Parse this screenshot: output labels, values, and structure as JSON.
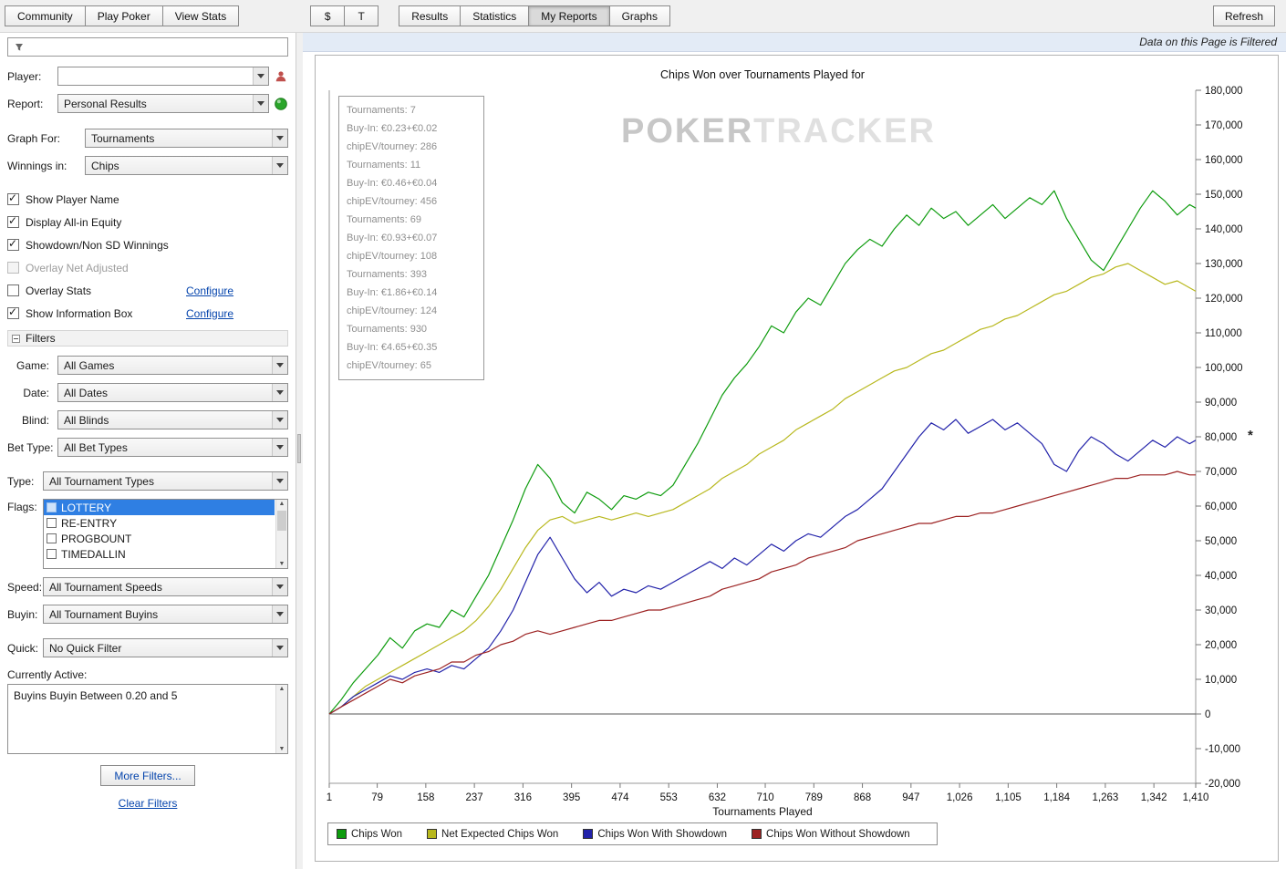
{
  "toolbar": {
    "nav_buttons": [
      {
        "label": "Community"
      },
      {
        "label": "Play Poker"
      },
      {
        "label": "View Stats"
      }
    ],
    "currency_buttons": [
      {
        "label": "$",
        "name": "dollar-button"
      },
      {
        "label": "T",
        "name": "tournament-currency-button"
      }
    ],
    "view_tabs": [
      {
        "label": "Results",
        "active": false
      },
      {
        "label": "Statistics",
        "active": false
      },
      {
        "label": "My Reports",
        "active": true
      },
      {
        "label": "Graphs",
        "active": false
      }
    ],
    "refresh_label": "Refresh"
  },
  "sidebar": {
    "search_value": "",
    "player_label": "Player:",
    "player_value": "",
    "report_label": "Report:",
    "report_value": "Personal Results",
    "graph_for_label": "Graph For:",
    "graph_for_value": "Tournaments",
    "winnings_label": "Winnings in:",
    "winnings_value": "Chips",
    "options": [
      {
        "label": "Show Player Name",
        "checked": true,
        "enabled": true,
        "link": null
      },
      {
        "label": "Display All-in Equity",
        "checked": true,
        "enabled": true,
        "link": null
      },
      {
        "label": "Showdown/Non SD Winnings",
        "checked": true,
        "enabled": true,
        "link": null
      },
      {
        "label": "Overlay Net Adjusted",
        "checked": false,
        "enabled": false,
        "link": null
      },
      {
        "label": "Overlay Stats",
        "checked": false,
        "enabled": true,
        "link": "Configure"
      },
      {
        "label": "Show Information Box",
        "checked": true,
        "enabled": true,
        "link": "Configure"
      }
    ],
    "filters_header": "Filters",
    "basic_filters": [
      {
        "label": "Game:",
        "value": "All Games"
      },
      {
        "label": "Date:",
        "value": "All Dates"
      },
      {
        "label": "Blind:",
        "value": "All Blinds"
      },
      {
        "label": "Bet Type:",
        "value": "All Bet Types"
      }
    ],
    "type_label": "Type:",
    "type_value": "All Tournament Types",
    "flags_label": "Flags:",
    "flags": [
      {
        "label": "LOTTERY",
        "checked": false,
        "selected": true
      },
      {
        "label": "RE-ENTRY",
        "checked": false,
        "selected": false
      },
      {
        "label": "PROGBOUNT",
        "checked": false,
        "selected": false
      },
      {
        "label": "TIMEDALLIN",
        "checked": false,
        "selected": false
      }
    ],
    "speed_label": "Speed:",
    "speed_value": "All Tournament Speeds",
    "buyin_label": "Buyin:",
    "buyin_value": "All Tournament Buyins",
    "quick_label": "Quick:",
    "quick_value": "No Quick Filter",
    "currently_active_label": "Currently Active:",
    "active_filter_text": "Buyins Buyin Between 0.20 and 5",
    "more_filters_label": "More Filters...",
    "clear_filters_label": "Clear Filters"
  },
  "main": {
    "filtered_notice": "Data on this Page is Filtered",
    "watermark_left": "POKER",
    "watermark_right": "TRACKER",
    "final_marker": "*",
    "info_box_lines": [
      "Tournaments: 7",
      "Buy-In: €0.23+€0.02",
      "chipEV/tourney: 286",
      "Tournaments: 11",
      "Buy-In: €0.46+€0.04",
      "chipEV/tourney: 456",
      "Tournaments: 69",
      "Buy-In: €0.93+€0.07",
      "chipEV/tourney: 108",
      "Tournaments: 393",
      "Buy-In: €1.86+€0.14",
      "chipEV/tourney: 124",
      "Tournaments: 930",
      "Buy-In: €4.65+€0.35",
      "chipEV/tourney: 65"
    ]
  },
  "icons": {
    "search_box": "filter-icon",
    "player": "person-icon",
    "report": "go-icon",
    "combo_arrow": "chevron-down-icon",
    "filters_header": "collapse-icon",
    "scrollbar": "scroll-arrows",
    "final_value": "asterisk-marker"
  },
  "chart_data": {
    "type": "line",
    "title": "Chips Won over Tournaments Played for",
    "xlabel": "Tournaments Played",
    "ylabel": "",
    "xlim": [
      1,
      1410
    ],
    "ylim": [
      -20000,
      180000
    ],
    "y_tick_step": 10000,
    "x_ticks": [
      1,
      79,
      158,
      237,
      316,
      395,
      474,
      553,
      632,
      710,
      789,
      868,
      947,
      1026,
      1105,
      1184,
      1263,
      1342,
      1410
    ],
    "grid": false,
    "legend_position": "bottom",
    "x": [
      1,
      20,
      40,
      60,
      80,
      100,
      120,
      140,
      160,
      180,
      200,
      220,
      240,
      260,
      280,
      300,
      320,
      340,
      360,
      380,
      400,
      420,
      440,
      460,
      480,
      500,
      520,
      540,
      560,
      580,
      600,
      620,
      640,
      660,
      680,
      700,
      720,
      740,
      760,
      780,
      800,
      820,
      840,
      860,
      880,
      900,
      920,
      940,
      960,
      980,
      1000,
      1020,
      1040,
      1060,
      1080,
      1100,
      1120,
      1140,
      1160,
      1180,
      1200,
      1220,
      1240,
      1260,
      1280,
      1300,
      1320,
      1340,
      1360,
      1380,
      1400,
      1410
    ],
    "series": [
      {
        "name": "Chips Won",
        "color": "#0e9c0e",
        "values": [
          0,
          4000,
          9000,
          13000,
          17000,
          22000,
          19000,
          24000,
          26000,
          25000,
          30000,
          28000,
          34000,
          40000,
          48000,
          56000,
          65000,
          72000,
          68000,
          61000,
          58000,
          64000,
          62000,
          59000,
          63000,
          62000,
          64000,
          63000,
          66000,
          72000,
          78000,
          85000,
          92000,
          97000,
          101000,
          106000,
          112000,
          110000,
          116000,
          120000,
          118000,
          124000,
          130000,
          134000,
          137000,
          135000,
          140000,
          144000,
          141000,
          146000,
          143000,
          145000,
          141000,
          144000,
          147000,
          143000,
          146000,
          149000,
          147000,
          151000,
          143000,
          137000,
          131000,
          128000,
          134000,
          140000,
          146000,
          151000,
          148000,
          144000,
          147000,
          146000
        ]
      },
      {
        "name": "Net Expected Chips Won",
        "color": "#b8b81e",
        "values": [
          0,
          2000,
          5000,
          8000,
          10000,
          12000,
          14000,
          16000,
          18000,
          20000,
          22000,
          24000,
          27000,
          31000,
          36000,
          42000,
          48000,
          53000,
          56000,
          57000,
          55000,
          56000,
          57000,
          56000,
          57000,
          58000,
          57000,
          58000,
          59000,
          61000,
          63000,
          65000,
          68000,
          70000,
          72000,
          75000,
          77000,
          79000,
          82000,
          84000,
          86000,
          88000,
          91000,
          93000,
          95000,
          97000,
          99000,
          100000,
          102000,
          104000,
          105000,
          107000,
          109000,
          111000,
          112000,
          114000,
          115000,
          117000,
          119000,
          121000,
          122000,
          124000,
          126000,
          127000,
          129000,
          130000,
          128000,
          126000,
          124000,
          125000,
          123000,
          122000
        ]
      },
      {
        "name": "Chips Won With Showdown",
        "color": "#2222aa",
        "values": [
          0,
          2000,
          5000,
          7000,
          9000,
          11000,
          10000,
          12000,
          13000,
          12000,
          14000,
          13000,
          16000,
          19000,
          24000,
          30000,
          38000,
          46000,
          51000,
          45000,
          39000,
          35000,
          38000,
          34000,
          36000,
          35000,
          37000,
          36000,
          38000,
          40000,
          42000,
          44000,
          42000,
          45000,
          43000,
          46000,
          49000,
          47000,
          50000,
          52000,
          51000,
          54000,
          57000,
          59000,
          62000,
          65000,
          70000,
          75000,
          80000,
          84000,
          82000,
          85000,
          81000,
          83000,
          85000,
          82000,
          84000,
          81000,
          78000,
          72000,
          70000,
          76000,
          80000,
          78000,
          75000,
          73000,
          76000,
          79000,
          77000,
          80000,
          78000,
          79000
        ]
      },
      {
        "name": "Chips Won Without Showdown",
        "color": "#9c2222",
        "values": [
          0,
          2000,
          4000,
          6000,
          8000,
          10000,
          9000,
          11000,
          12000,
          13000,
          15000,
          15000,
          17000,
          18000,
          20000,
          21000,
          23000,
          24000,
          23000,
          24000,
          25000,
          26000,
          27000,
          27000,
          28000,
          29000,
          30000,
          30000,
          31000,
          32000,
          33000,
          34000,
          36000,
          37000,
          38000,
          39000,
          41000,
          42000,
          43000,
          45000,
          46000,
          47000,
          48000,
          50000,
          51000,
          52000,
          53000,
          54000,
          55000,
          55000,
          56000,
          57000,
          57000,
          58000,
          58000,
          59000,
          60000,
          61000,
          62000,
          63000,
          64000,
          65000,
          66000,
          67000,
          68000,
          68000,
          69000,
          69000,
          69000,
          70000,
          69000,
          69000
        ]
      }
    ]
  }
}
